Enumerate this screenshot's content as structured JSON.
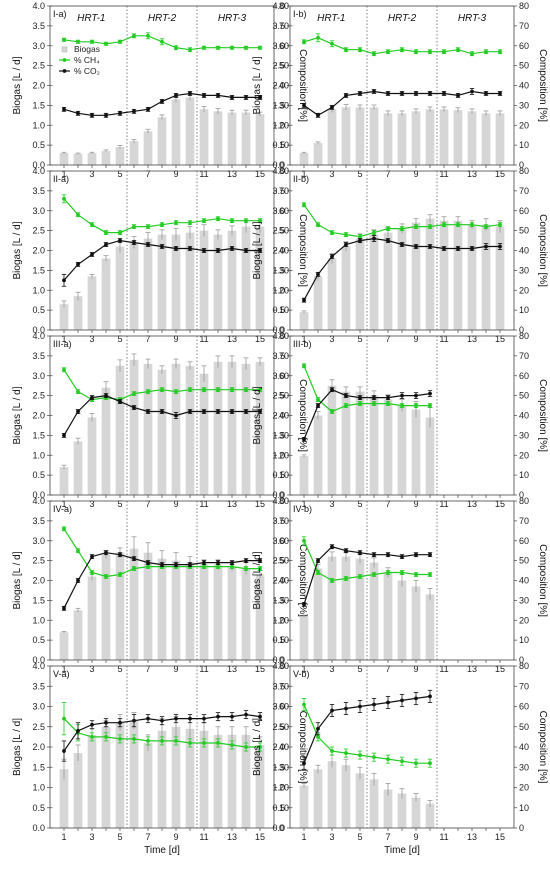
{
  "figure": {
    "xlabel": "Time [d]",
    "ylabel_left": "Biogas [L / d]",
    "ylabel_right": "Composition [%]",
    "ylim_left": [
      0,
      4
    ],
    "ylim_right": [
      0,
      80
    ],
    "xlim": [
      0,
      16
    ],
    "left_ticks": [
      "0.0",
      "0.5",
      "1.0",
      "1.5",
      "2.0",
      "2.5",
      "3.0",
      "3.5",
      "4.0"
    ],
    "right_ticks": [
      "0",
      "10",
      "20",
      "30",
      "40",
      "50",
      "60",
      "70",
      "80"
    ],
    "x_ticks": [
      "1",
      "3",
      "5",
      "7",
      "9",
      "11",
      "13",
      "15"
    ],
    "x_tick_values": [
      1,
      3,
      5,
      7,
      9,
      11,
      13,
      15
    ],
    "hrt_labels": [
      "HRT-1",
      "HRT-2",
      "HRT-3"
    ],
    "hrt_boundaries": [
      5.5,
      10.5
    ],
    "legend": {
      "biogas": "Biogas",
      "ch4": "% CH₄",
      "co2": "% CO₂"
    },
    "colors": {
      "bar": "#d6d6d6",
      "ch4": "#22cc22",
      "co2": "#111111",
      "grid": "#cccccc"
    }
  },
  "chart_data": [
    {
      "type": "bar+line",
      "id": "I-a",
      "label": "I-a)",
      "x": [
        1,
        2,
        3,
        4,
        5,
        6,
        7,
        8,
        9,
        10,
        11,
        12,
        13,
        14,
        15
      ],
      "biogas": [
        0.3,
        0.28,
        0.3,
        0.35,
        0.45,
        0.6,
        0.85,
        1.2,
        1.65,
        1.7,
        1.4,
        1.35,
        1.32,
        1.32,
        1.28
      ],
      "biogas_err": [
        0.02,
        0.02,
        0.02,
        0.03,
        0.04,
        0.04,
        0.05,
        0.06,
        0.08,
        0.08,
        0.07,
        0.07,
        0.06,
        0.06,
        0.05
      ],
      "ch4": [
        63,
        62,
        62,
        61,
        62,
        65,
        65,
        62,
        59,
        58,
        59,
        59,
        59,
        59,
        59
      ],
      "ch4_err": [
        0.8,
        0.8,
        0.8,
        0.8,
        0.8,
        1,
        1.5,
        1.5,
        1,
        1,
        0.8,
        0.8,
        0.8,
        0.8,
        0.8
      ],
      "co2": [
        28,
        26,
        25,
        25,
        26,
        27,
        28,
        32,
        35,
        36,
        35,
        35,
        34,
        34,
        34
      ],
      "co2_err": [
        1,
        1,
        1,
        1,
        1,
        1,
        1,
        1,
        1,
        1,
        1,
        1,
        1,
        1,
        1
      ]
    },
    {
      "type": "bar+line",
      "id": "I-b",
      "label": "I-b)",
      "x": [
        1,
        2,
        3,
        4,
        5,
        6,
        7,
        8,
        9,
        10,
        11,
        12,
        13,
        14,
        15
      ],
      "biogas": [
        0.3,
        0.55,
        1.4,
        1.45,
        1.45,
        1.45,
        1.3,
        1.3,
        1.35,
        1.4,
        1.4,
        1.38,
        1.35,
        1.3,
        1.3
      ],
      "biogas_err": [
        0.02,
        0.03,
        0.08,
        0.07,
        0.06,
        0.06,
        0.06,
        0.06,
        0.06,
        0.06,
        0.06,
        0.06,
        0.06,
        0.06,
        0.06
      ],
      "ch4": [
        62,
        64,
        61,
        58,
        58,
        56,
        57,
        58,
        57,
        57,
        57,
        58,
        56,
        57,
        57
      ],
      "ch4_err": [
        1,
        2,
        1.5,
        1,
        1,
        1,
        1,
        1,
        1,
        1,
        1,
        1,
        1,
        1,
        1
      ],
      "co2": [
        30,
        25,
        29,
        35,
        36,
        37,
        36,
        36,
        36,
        36,
        36,
        35,
        37,
        36,
        36
      ],
      "co2_err": [
        1,
        1,
        1,
        1,
        1,
        1,
        1,
        1,
        1,
        1,
        1,
        1,
        1.5,
        1,
        1
      ]
    },
    {
      "type": "bar+line",
      "id": "II-a",
      "label": "II-a)",
      "x": [
        1,
        2,
        3,
        4,
        5,
        6,
        7,
        8,
        9,
        10,
        11,
        12,
        13,
        14,
        15
      ],
      "biogas": [
        0.65,
        0.85,
        1.35,
        1.8,
        2.1,
        2.2,
        2.3,
        2.4,
        2.4,
        2.45,
        2.5,
        2.4,
        2.5,
        2.6,
        2.6
      ],
      "biogas_err": [
        0.08,
        0.1,
        0.05,
        0.07,
        0.15,
        0.15,
        0.15,
        0.12,
        0.15,
        0.15,
        0.15,
        0.12,
        0.12,
        0.15,
        0.15
      ],
      "ch4": [
        66,
        58,
        53,
        49,
        49,
        52,
        52,
        53,
        54,
        54,
        55,
        56,
        55,
        55,
        55
      ],
      "ch4_err": [
        2,
        1,
        1,
        1,
        1,
        1,
        1,
        1,
        1,
        1,
        1,
        1,
        1,
        1,
        1
      ],
      "co2": [
        25,
        33,
        38,
        43,
        45,
        44,
        43,
        42,
        41,
        41,
        40,
        40,
        41,
        40,
        40
      ],
      "co2_err": [
        3,
        1,
        1,
        1,
        1,
        1,
        1,
        1,
        1,
        1,
        1,
        1,
        1,
        1,
        1
      ]
    },
    {
      "type": "bar+line",
      "id": "II-b",
      "label": "II-b)",
      "x": [
        1,
        2,
        3,
        4,
        5,
        6,
        7,
        8,
        9,
        10,
        11,
        12,
        13,
        14,
        15
      ],
      "biogas": [
        0.45,
        1.35,
        1.8,
        2.1,
        2.3,
        2.4,
        2.45,
        2.55,
        2.7,
        2.8,
        2.75,
        2.75,
        2.65,
        2.65,
        2.6
      ],
      "biogas_err": [
        0.03,
        0.1,
        0.12,
        0.12,
        0.12,
        0.12,
        0.12,
        0.12,
        0.1,
        0.1,
        0.1,
        0.1,
        0.1,
        0.15,
        0.15
      ],
      "ch4": [
        63,
        53,
        49,
        48,
        47,
        49,
        51,
        51,
        52,
        52,
        53,
        53,
        53,
        52,
        53
      ],
      "ch4_err": [
        1,
        1,
        1,
        1,
        1,
        1,
        1,
        1,
        1,
        1,
        1,
        1,
        1,
        1,
        1
      ],
      "co2": [
        15,
        28,
        37,
        43,
        45,
        46,
        45,
        43,
        42,
        42,
        41,
        41,
        41,
        42,
        42
      ],
      "co2_err": [
        1,
        1,
        1,
        1,
        1,
        1.5,
        1,
        1,
        1,
        1,
        1,
        1,
        1,
        1.5,
        1.5
      ]
    },
    {
      "type": "bar+line",
      "id": "III-a",
      "label": "III-a)",
      "x": [
        1,
        2,
        3,
        4,
        5,
        6,
        7,
        8,
        9,
        10,
        11,
        12,
        13,
        14,
        15
      ],
      "biogas": [
        0.7,
        1.35,
        1.95,
        2.7,
        3.25,
        3.4,
        3.3,
        3.15,
        3.3,
        3.25,
        3.05,
        3.35,
        3.35,
        3.3,
        3.35
      ],
      "biogas_err": [
        0.05,
        0.08,
        0.1,
        0.15,
        0.15,
        0.15,
        0.12,
        0.1,
        0.12,
        0.1,
        0.2,
        0.15,
        0.15,
        0.15,
        0.1
      ],
      "ch4": [
        63,
        52,
        48,
        49,
        48,
        51,
        52,
        53,
        52,
        53,
        53,
        53,
        53,
        53,
        53
      ],
      "ch4_err": [
        1,
        1,
        1,
        1,
        1,
        1,
        1,
        1,
        1,
        1,
        1,
        1,
        1,
        1,
        1
      ],
      "co2": [
        30,
        42,
        49,
        50,
        47,
        44,
        42,
        42,
        40,
        42,
        42,
        42,
        42,
        42,
        42
      ],
      "co2_err": [
        1,
        1,
        1,
        1,
        1,
        1,
        1,
        1,
        1.5,
        1,
        1,
        1,
        1,
        1,
        1
      ]
    },
    {
      "type": "bar+line",
      "id": "III-b",
      "label": "III-b)",
      "x": [
        1,
        2,
        3,
        4,
        5,
        6,
        7,
        8,
        9,
        10
      ],
      "biogas": [
        0.98,
        2.0,
        2.75,
        2.6,
        2.6,
        2.5,
        2.4,
        2.25,
        2.15,
        1.95
      ],
      "biogas_err": [
        0.03,
        0.1,
        0.15,
        0.12,
        0.12,
        0.12,
        0.12,
        0.15,
        0.2,
        0.25
      ],
      "ch4": [
        65,
        48,
        42,
        45,
        46,
        46,
        46,
        45,
        45,
        45
      ],
      "ch4_err": [
        1,
        1,
        1,
        1,
        1,
        1,
        1,
        1,
        1,
        1
      ],
      "co2": [
        28,
        45,
        53,
        50,
        49,
        49,
        49,
        50,
        50,
        51
      ],
      "co2_err": [
        1,
        1,
        1,
        1,
        1,
        1,
        1,
        1.5,
        1.5,
        1.5
      ]
    },
    {
      "type": "bar+line",
      "id": "IV-a",
      "label": "IV-a)",
      "x": [
        1,
        2,
        3,
        4,
        5,
        6,
        7,
        8,
        9,
        10,
        11,
        12,
        13,
        14,
        15
      ],
      "biogas": [
        0.7,
        1.25,
        2.1,
        2.65,
        2.7,
        2.8,
        2.7,
        2.55,
        2.5,
        2.45,
        2.4,
        2.4,
        2.35,
        2.3,
        2.15
      ],
      "biogas_err": [
        0.02,
        0.05,
        0.1,
        0.1,
        0.12,
        0.3,
        0.25,
        0.2,
        0.2,
        0.15,
        0.12,
        0.12,
        0.12,
        0.15,
        0.1
      ],
      "ch4": [
        66,
        55,
        44,
        42,
        43,
        46,
        47,
        47,
        47,
        47,
        47,
        47,
        47,
        46,
        46
      ],
      "ch4_err": [
        1,
        1,
        1,
        1,
        1,
        1,
        1,
        1,
        1,
        1,
        1,
        1,
        1,
        1,
        1
      ],
      "co2": [
        26,
        40,
        52,
        54,
        53,
        51,
        49,
        48,
        48,
        48,
        49,
        49,
        49,
        50,
        50
      ],
      "co2_err": [
        1,
        1,
        1,
        1,
        1,
        1,
        1,
        1,
        1,
        1,
        1,
        1,
        1,
        1,
        1
      ]
    },
    {
      "type": "bar+line",
      "id": "IV-b",
      "label": "IV-b)",
      "x": [
        1,
        2,
        3,
        4,
        5,
        6,
        7,
        8,
        9,
        10
      ],
      "biogas": [
        1.1,
        2.3,
        2.6,
        2.6,
        2.55,
        2.45,
        2.2,
        2.0,
        1.85,
        1.65
      ],
      "biogas_err": [
        0.03,
        0.1,
        0.12,
        0.12,
        0.12,
        0.12,
        0.12,
        0.15,
        0.15,
        0.15
      ],
      "ch4": [
        60,
        44,
        40,
        41,
        42,
        43,
        44,
        44,
        43,
        43
      ],
      "ch4_err": [
        2,
        1,
        1,
        1,
        1,
        1,
        1,
        1,
        1,
        1
      ],
      "co2": [
        28,
        50,
        57,
        55,
        54,
        53,
        53,
        52,
        53,
        53
      ],
      "co2_err": [
        1,
        1,
        1,
        1,
        1,
        1,
        1,
        1,
        1,
        1
      ]
    },
    {
      "type": "bar+line",
      "id": "V-a",
      "label": "V-a)",
      "x": [
        1,
        2,
        3,
        4,
        5,
        6,
        7,
        8,
        9,
        10,
        11,
        12,
        13,
        14,
        15
      ],
      "biogas": [
        1.45,
        1.85,
        2.3,
        2.5,
        2.6,
        2.65,
        2.1,
        2.4,
        2.5,
        2.45,
        2.4,
        2.3,
        2.3,
        2.3,
        2.05
      ],
      "biogas_err": [
        0.25,
        0.2,
        0.15,
        0.15,
        0.2,
        0.2,
        0.2,
        0.3,
        0.25,
        0.25,
        0.2,
        0.2,
        0.2,
        0.2,
        0.2
      ],
      "ch4": [
        54,
        47,
        45,
        45,
        44,
        44,
        43,
        43,
        43,
        42,
        42,
        42,
        41,
        40,
        40
      ],
      "ch4_err": [
        8,
        4,
        2,
        2,
        2,
        2,
        2,
        2,
        2,
        2,
        2,
        2,
        2,
        2,
        2
      ],
      "co2": [
        38,
        48,
        51,
        52,
        52,
        53,
        54,
        53,
        54,
        54,
        54,
        55,
        55,
        56,
        55
      ],
      "co2_err": [
        5,
        4,
        2,
        2,
        2,
        3,
        2,
        2,
        2,
        2,
        2,
        2,
        2,
        2,
        2
      ]
    },
    {
      "type": "bar+line",
      "id": "V-b",
      "label": "V-b)",
      "x": [
        1,
        2,
        3,
        4,
        5,
        6,
        7,
        8,
        9,
        10
      ],
      "biogas": [
        1.05,
        1.45,
        1.65,
        1.55,
        1.35,
        1.2,
        0.95,
        0.85,
        0.75,
        0.6
      ],
      "biogas_err": [
        0.05,
        0.1,
        0.15,
        0.15,
        0.15,
        0.15,
        0.15,
        0.12,
        0.1,
        0.08
      ],
      "ch4": [
        61,
        45,
        38,
        37,
        36,
        35,
        34,
        33,
        32,
        32
      ],
      "ch4_err": [
        3,
        2,
        2,
        2,
        2,
        2,
        2,
        2,
        2,
        2
      ],
      "co2": [
        32,
        49,
        58,
        59,
        60,
        61,
        62,
        63,
        64,
        65
      ],
      "co2_err": [
        3,
        3,
        3,
        3,
        3,
        3,
        3,
        3,
        3,
        3
      ]
    }
  ]
}
